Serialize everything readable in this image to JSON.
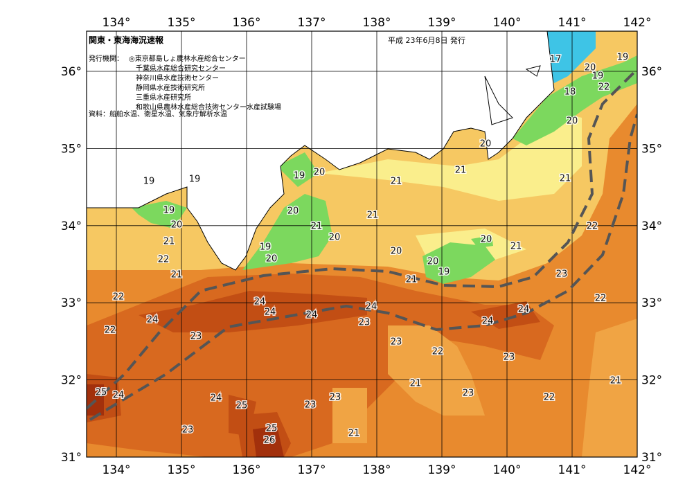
{
  "header": {
    "title": "関東・東海海況速報",
    "date": "平成 23年6月8日 発行",
    "issuers_label": "発行機関：",
    "issuers": [
      "◎東京都島しょ農林水産総合センター",
      "千葉県水産総合研究センター",
      "神奈川県水産技術センター",
      "静岡県水産技術研究所",
      "三重県水産研究所",
      "和歌山県農林水産総合技術センター水産試験場"
    ],
    "source": "資料：船舶水温、衛星水温、気象庁解析水温"
  },
  "map": {
    "lon_labels": [
      "134°",
      "135°",
      "136°",
      "137°",
      "138°",
      "139°",
      "140°",
      "141°",
      "142°"
    ],
    "lat_labels": [
      "31°",
      "32°",
      "33°",
      "34°",
      "35°",
      "36°"
    ],
    "contour_labels": [
      19,
      19,
      19,
      20,
      21,
      22,
      21,
      22,
      22,
      24,
      23,
      25,
      24,
      24,
      25,
      23,
      25,
      26,
      23,
      23,
      21,
      24,
      24,
      24,
      24,
      23,
      23,
      22,
      21,
      23,
      23,
      24,
      24,
      22,
      21,
      22,
      23,
      22,
      21,
      21,
      20,
      20,
      19,
      21,
      20,
      21,
      21,
      21,
      20,
      20,
      18,
      19,
      20,
      17,
      19,
      22,
      19,
      20,
      20,
      21,
      20,
      19,
      20
    ]
  }
}
